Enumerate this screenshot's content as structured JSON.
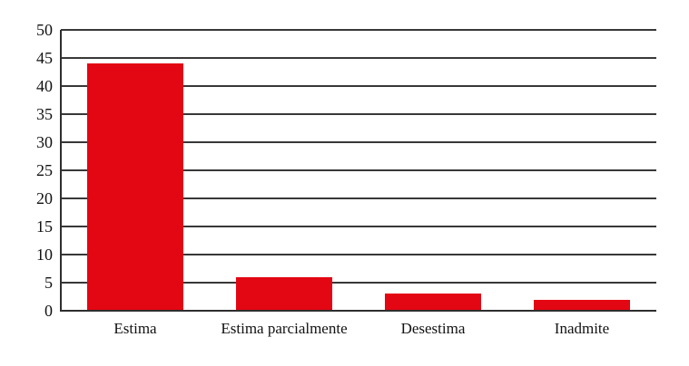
{
  "chart_data": {
    "type": "bar",
    "title": "",
    "xlabel": "",
    "ylabel": "",
    "categories": [
      "Estima",
      "Estima parcialmente",
      "Desestima",
      "Inadmite"
    ],
    "values": [
      44,
      6,
      3,
      2
    ],
    "ylim": [
      0,
      50
    ],
    "y_ticks": [
      0,
      5,
      10,
      15,
      20,
      25,
      30,
      35,
      40,
      45,
      50
    ],
    "grid": true,
    "legend_position": "none",
    "bar_color": "#e30613",
    "grid_color": "#383838",
    "axis_color": "#2e2e2e",
    "text_color": "#121212",
    "background_color": "#ffffff"
  }
}
